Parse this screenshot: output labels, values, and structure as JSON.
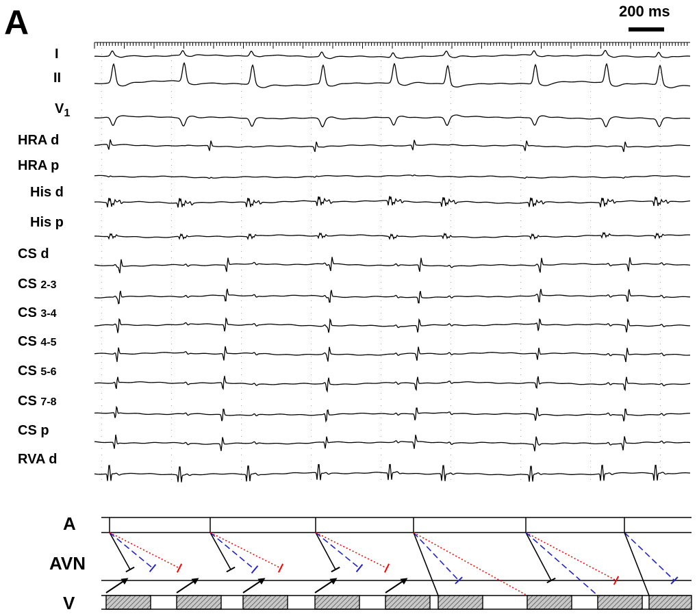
{
  "panel_label": "A",
  "scale_bar_label": "200 ms",
  "channels": [
    {
      "id": "I",
      "label": "I",
      "sub": ""
    },
    {
      "id": "II",
      "label": "II",
      "sub": ""
    },
    {
      "id": "V1",
      "label": "V",
      "sub": "1"
    },
    {
      "id": "HRAd",
      "label": "HRA d",
      "sub": ""
    },
    {
      "id": "HRAp",
      "label": "HRA p",
      "sub": ""
    },
    {
      "id": "Hisd",
      "label": "His d",
      "sub": ""
    },
    {
      "id": "Hisp",
      "label": "His p",
      "sub": ""
    },
    {
      "id": "CSd",
      "label": "CS d",
      "sub": ""
    },
    {
      "id": "CS23",
      "label": "CS ",
      "small": "2-3"
    },
    {
      "id": "CS34",
      "label": "CS ",
      "small": "3-4"
    },
    {
      "id": "CS45",
      "label": "CS ",
      "small": "4-5"
    },
    {
      "id": "CS56",
      "label": "CS ",
      "small": "5-6"
    },
    {
      "id": "CS78",
      "label": "CS ",
      "small": "7-8"
    },
    {
      "id": "CSp",
      "label": "CS p",
      "sub": ""
    },
    {
      "id": "RVAd",
      "label": "RVA d",
      "sub": ""
    }
  ],
  "ladder": {
    "rows": [
      "A",
      "AVN",
      "V"
    ]
  },
  "colors": {
    "trace": "#000000",
    "block_red": "#ff0000",
    "block_blue": "#2222cc",
    "hatch": "#555555",
    "grid_dot": "#aaaaaa"
  }
}
